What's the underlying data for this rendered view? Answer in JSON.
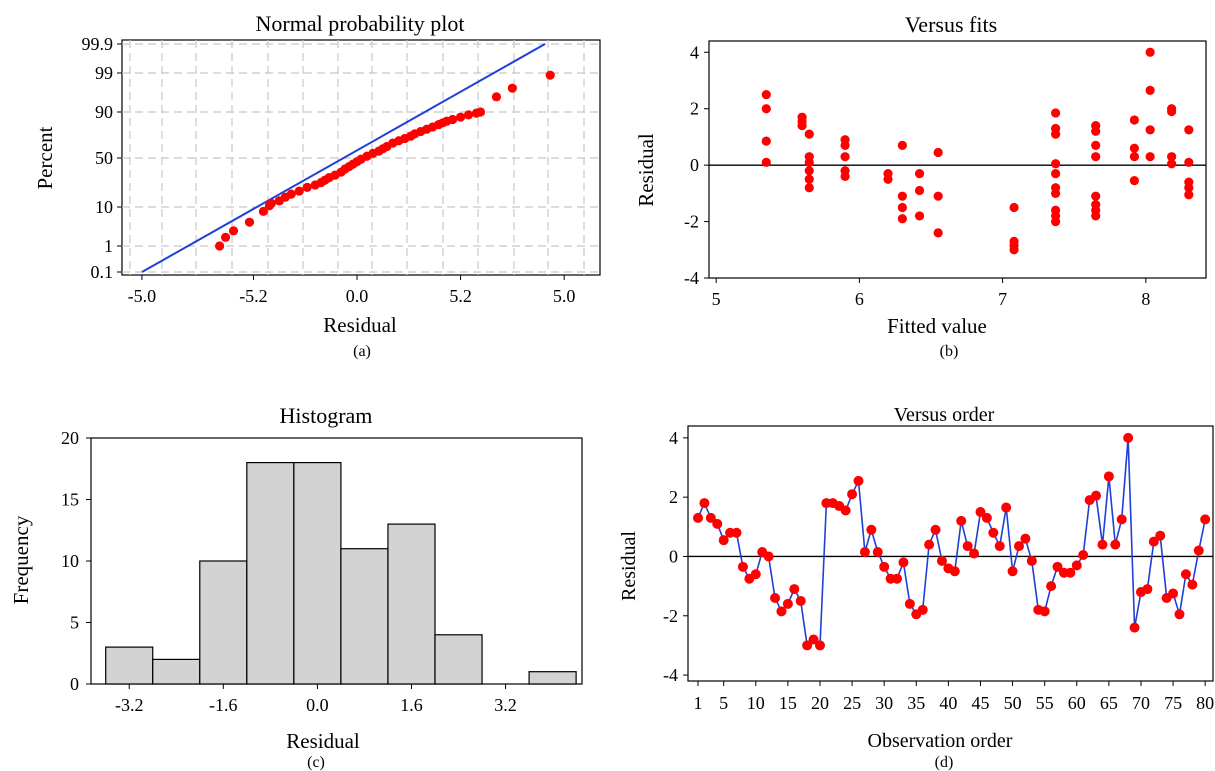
{
  "chart_data": [
    {
      "id": "a",
      "type": "scatter",
      "title": "Normal probability plot",
      "xlabel": "Residual",
      "ylabel": "Percent",
      "caption": "(a)",
      "x_tick_labels": [
        "-5.0",
        "-5.2",
        "0.0",
        "5.2",
        "5.0"
      ],
      "y_tick_labels": [
        "0.1",
        "1",
        "10",
        "50",
        "90",
        "99",
        "99.9"
      ],
      "grid": true,
      "fit_line": {
        "from": [
          -5.5,
          0.1
        ],
        "to": [
          6.5,
          99.9
        ]
      },
      "points": [
        [
          -3.05,
          1.0
        ],
        [
          -2.9,
          3.0
        ],
        [
          -2.7,
          4.5
        ],
        [
          -2.3,
          6.5
        ],
        [
          -1.95,
          9.0
        ],
        [
          -1.8,
          11.0
        ],
        [
          -1.75,
          13.0
        ],
        [
          -1.55,
          15.0
        ],
        [
          -1.4,
          18.0
        ],
        [
          -1.25,
          20.5
        ],
        [
          -1.05,
          23.0
        ],
        [
          -0.85,
          26.0
        ],
        [
          -0.65,
          28.0
        ],
        [
          -0.5,
          30.0
        ],
        [
          -0.4,
          32.0
        ],
        [
          -0.3,
          34.0
        ],
        [
          -0.15,
          36.0
        ],
        [
          0.0,
          38.5
        ],
        [
          0.1,
          41.0
        ],
        [
          0.2,
          43.0
        ],
        [
          0.3,
          45.0
        ],
        [
          0.4,
          47.0
        ],
        [
          0.5,
          49.0
        ],
        [
          0.65,
          51.5
        ],
        [
          0.8,
          54.0
        ],
        [
          0.95,
          56.0
        ],
        [
          1.05,
          58.0
        ],
        [
          1.15,
          60.0
        ],
        [
          1.3,
          63.0
        ],
        [
          1.45,
          65.0
        ],
        [
          1.6,
          67.0
        ],
        [
          1.75,
          69.0
        ],
        [
          1.85,
          71.0
        ],
        [
          2.0,
          73.0
        ],
        [
          2.15,
          75.0
        ],
        [
          2.3,
          77.0
        ],
        [
          2.45,
          79.0
        ],
        [
          2.55,
          80.5
        ],
        [
          2.65,
          82.0
        ],
        [
          2.8,
          83.5
        ],
        [
          3.0,
          85.5
        ],
        [
          3.2,
          87.5
        ],
        [
          3.4,
          89.0
        ],
        [
          3.5,
          90.0
        ],
        [
          3.9,
          93.5
        ],
        [
          4.3,
          95.5
        ],
        [
          5.25,
          98.5
        ]
      ]
    },
    {
      "id": "b",
      "type": "scatter",
      "title": "Versus fits",
      "xlabel": "Fitted value",
      "ylabel": "Residual",
      "caption": "(b)",
      "xlim": [
        4.95,
        8.42
      ],
      "ylim": [
        -4,
        4.4
      ],
      "x_ticks": [
        5,
        6,
        7,
        8
      ],
      "y_ticks": [
        -4,
        -2,
        0,
        2,
        4
      ],
      "zero_line": true,
      "points": [
        [
          5.35,
          2.5
        ],
        [
          5.35,
          2.0
        ],
        [
          5.35,
          0.85
        ],
        [
          5.35,
          0.1
        ],
        [
          5.6,
          1.7
        ],
        [
          5.6,
          1.55
        ],
        [
          5.6,
          1.4
        ],
        [
          5.65,
          1.1
        ],
        [
          5.65,
          0.3
        ],
        [
          5.65,
          0.1
        ],
        [
          5.65,
          -0.2
        ],
        [
          5.65,
          -0.5
        ],
        [
          5.65,
          -0.8
        ],
        [
          5.9,
          0.9
        ],
        [
          5.9,
          0.7
        ],
        [
          5.9,
          0.3
        ],
        [
          5.9,
          -0.2
        ],
        [
          5.9,
          -0.4
        ],
        [
          6.2,
          -0.3
        ],
        [
          6.2,
          -0.5
        ],
        [
          6.3,
          0.7
        ],
        [
          6.3,
          -1.1
        ],
        [
          6.3,
          -1.5
        ],
        [
          6.3,
          -1.9
        ],
        [
          6.42,
          -0.3
        ],
        [
          6.42,
          -0.9
        ],
        [
          6.42,
          -1.8
        ],
        [
          6.55,
          0.45
        ],
        [
          6.55,
          -1.1
        ],
        [
          6.55,
          -2.4
        ],
        [
          7.08,
          -1.5
        ],
        [
          7.08,
          -2.7
        ],
        [
          7.08,
          -2.85
        ],
        [
          7.08,
          -3.0
        ],
        [
          7.37,
          1.85
        ],
        [
          7.37,
          1.3
        ],
        [
          7.37,
          1.1
        ],
        [
          7.37,
          0.05
        ],
        [
          7.37,
          -0.3
        ],
        [
          7.37,
          -0.8
        ],
        [
          7.37,
          -1.0
        ],
        [
          7.37,
          -1.6
        ],
        [
          7.37,
          -1.8
        ],
        [
          7.37,
          -2.0
        ],
        [
          7.65,
          1.4
        ],
        [
          7.65,
          1.2
        ],
        [
          7.65,
          0.7
        ],
        [
          7.65,
          0.3
        ],
        [
          7.65,
          -1.1
        ],
        [
          7.65,
          -1.4
        ],
        [
          7.65,
          -1.6
        ],
        [
          7.65,
          -1.8
        ],
        [
          7.92,
          1.6
        ],
        [
          7.92,
          0.6
        ],
        [
          7.92,
          0.3
        ],
        [
          7.92,
          -0.55
        ],
        [
          8.03,
          4.0
        ],
        [
          8.03,
          2.65
        ],
        [
          8.03,
          1.25
        ],
        [
          8.03,
          0.3
        ],
        [
          8.18,
          2.0
        ],
        [
          8.18,
          1.9
        ],
        [
          8.18,
          0.3
        ],
        [
          8.18,
          0.05
        ],
        [
          8.3,
          1.25
        ],
        [
          8.3,
          0.1
        ],
        [
          8.3,
          -0.6
        ],
        [
          8.3,
          -0.8
        ],
        [
          8.3,
          -1.05
        ]
      ]
    },
    {
      "id": "c",
      "type": "bar",
      "title": "Histogram",
      "xlabel": "Residual",
      "ylabel": "Frequency",
      "caption": "(c)",
      "xlim": [
        -3.6,
        4.4
      ],
      "ylim": [
        0,
        20
      ],
      "x_ticks": [
        "-3.2",
        "-1.6",
        "0.0",
        "1.6",
        "3.2"
      ],
      "y_ticks": [
        0,
        5,
        10,
        15,
        20
      ],
      "bin_width": 0.8,
      "bins": [
        {
          "start": -3.6,
          "count": 3
        },
        {
          "start": -2.8,
          "count": 2
        },
        {
          "start": -2.0,
          "count": 10
        },
        {
          "start": -1.2,
          "count": 18
        },
        {
          "start": -0.4,
          "count": 18
        },
        {
          "start": 0.4,
          "count": 11
        },
        {
          "start": 1.2,
          "count": 13
        },
        {
          "start": 2.0,
          "count": 4
        },
        {
          "start": 2.8,
          "count": 0
        },
        {
          "start": 3.6,
          "count": 1
        }
      ]
    },
    {
      "id": "d",
      "type": "line",
      "title": "Versus order",
      "xlabel": "Observation order",
      "ylabel": "Residual",
      "caption": "(d)",
      "xlim": [
        0,
        81
      ],
      "ylim": [
        -4.2,
        4.4
      ],
      "x_ticks": [
        1,
        5,
        10,
        15,
        20,
        25,
        30,
        35,
        40,
        45,
        50,
        55,
        60,
        65,
        70,
        75,
        80
      ],
      "y_ticks": [
        -4,
        -2,
        0,
        2,
        4
      ],
      "zero_line": true,
      "y": [
        1.3,
        1.8,
        1.3,
        1.1,
        0.55,
        0.8,
        0.8,
        -0.35,
        -0.75,
        -0.6,
        0.15,
        0.0,
        -1.4,
        -1.85,
        -1.6,
        -1.1,
        -1.5,
        -3.0,
        -2.8,
        -3.0,
        1.8,
        1.8,
        1.7,
        1.55,
        2.1,
        2.55,
        0.15,
        0.9,
        0.15,
        -0.35,
        -0.75,
        -0.75,
        -0.2,
        -1.6,
        -1.95,
        -1.8,
        0.4,
        0.9,
        -0.15,
        -0.4,
        -0.5,
        1.2,
        0.35,
        0.1,
        1.5,
        1.3,
        0.8,
        0.35,
        1.65,
        -0.5,
        0.35,
        0.6,
        -0.15,
        -1.8,
        -1.85,
        -1.0,
        -0.35,
        -0.55,
        -0.55,
        -0.3,
        0.05,
        1.9,
        2.05,
        0.4,
        2.7,
        0.4,
        1.25,
        4.0,
        -2.4,
        -1.2,
        -1.1,
        0.5,
        0.7,
        -1.4,
        -1.25,
        -1.95,
        -0.6,
        -0.95,
        0.2,
        1.25
      ]
    }
  ]
}
